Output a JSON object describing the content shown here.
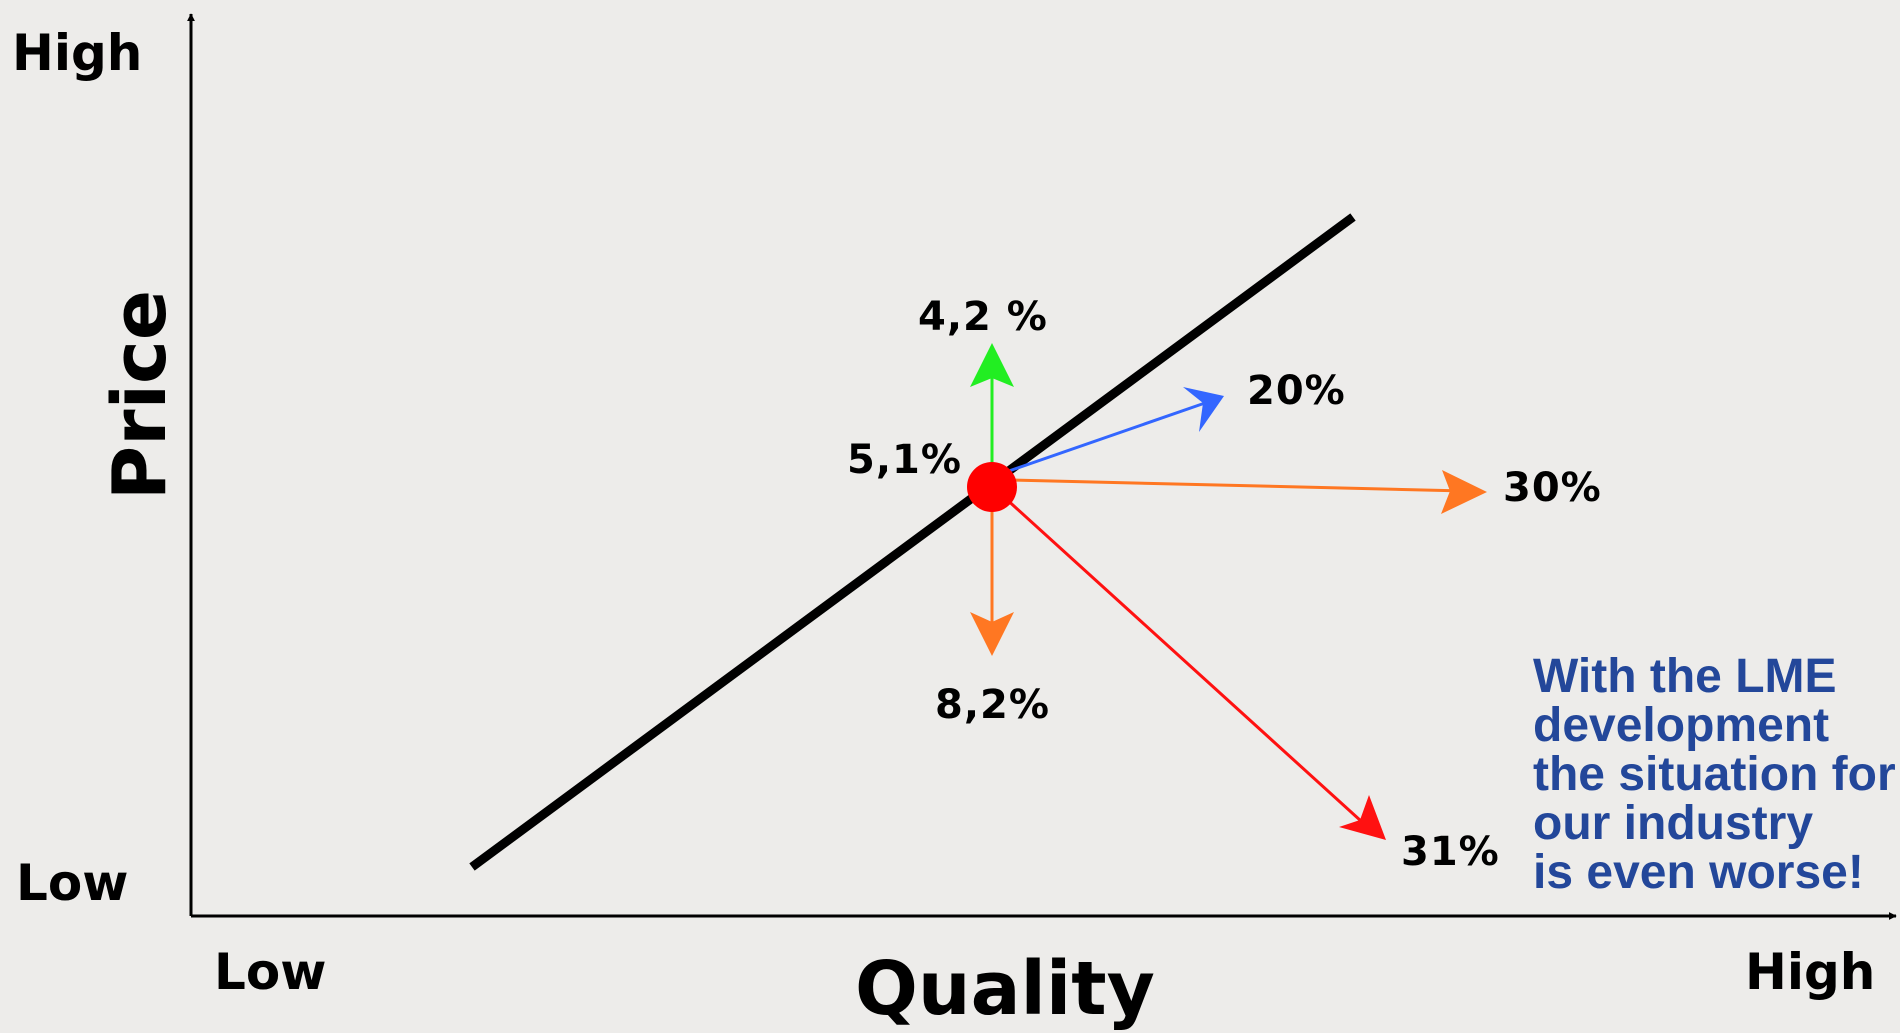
{
  "axes": {
    "y_title": "Price",
    "x_title": "Quality",
    "y_high": "High",
    "y_low": "Low",
    "x_low": "Low",
    "x_high": "High"
  },
  "arrows": [
    {
      "id": "up",
      "label": "4,2 %",
      "color": "#22ee22"
    },
    {
      "id": "up-right",
      "label": "20%",
      "color": "#3366ff"
    },
    {
      "id": "right",
      "label": "30%",
      "color": "#ff7722"
    },
    {
      "id": "down",
      "label": "8,2%",
      "color": "#ff7722"
    },
    {
      "id": "down-right",
      "label": "31%",
      "color": "#ff1111"
    }
  ],
  "point_label": "5,1%",
  "point_color": "#ff0000",
  "note_color": "#23479a",
  "note_lines": [
    "With the LME",
    "development",
    "the situation for",
    "our industry",
    "is even worse!"
  ]
}
